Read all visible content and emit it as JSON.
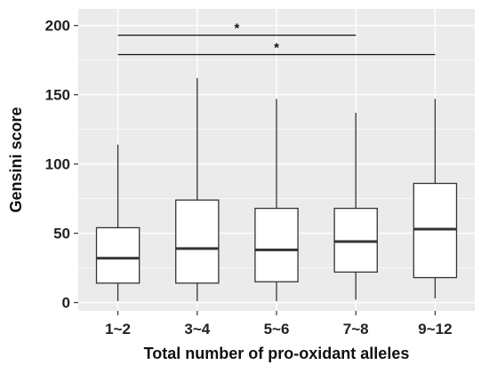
{
  "chart_data": {
    "type": "box",
    "title": "",
    "xlabel": "Total number of pro-oxidant alleles",
    "ylabel": "Gensini score",
    "ylim": [
      -6,
      212
    ],
    "yticks": [
      0,
      50,
      100,
      150,
      200
    ],
    "grid": true,
    "categories": [
      "1~2",
      "3~4",
      "5~6",
      "7~8",
      "9~12"
    ],
    "boxes": [
      {
        "category": "1~2",
        "min": 1,
        "q1": 14,
        "median": 32,
        "q3": 54,
        "max": 114
      },
      {
        "category": "3~4",
        "min": 1,
        "q1": 14,
        "median": 39,
        "q3": 74,
        "max": 162
      },
      {
        "category": "5~6",
        "min": 1,
        "q1": 15,
        "median": 38,
        "q3": 68,
        "max": 147
      },
      {
        "category": "7~8",
        "min": 2,
        "q1": 22,
        "median": 44,
        "q3": 68,
        "max": 137
      },
      {
        "category": "9~12",
        "min": 3,
        "q1": 18,
        "median": 53,
        "q3": 86,
        "max": 147
      }
    ],
    "significance": [
      {
        "from": "1~2",
        "to": "7~8",
        "y": 193,
        "label": "*"
      },
      {
        "from": "1~2",
        "to": "9~12",
        "y": 179,
        "label": "*"
      }
    ]
  },
  "colors": {
    "panel_background": "#ebebeb",
    "grid": "#ffffff",
    "box_fill": "#ffffff",
    "box_stroke": "#333333"
  }
}
